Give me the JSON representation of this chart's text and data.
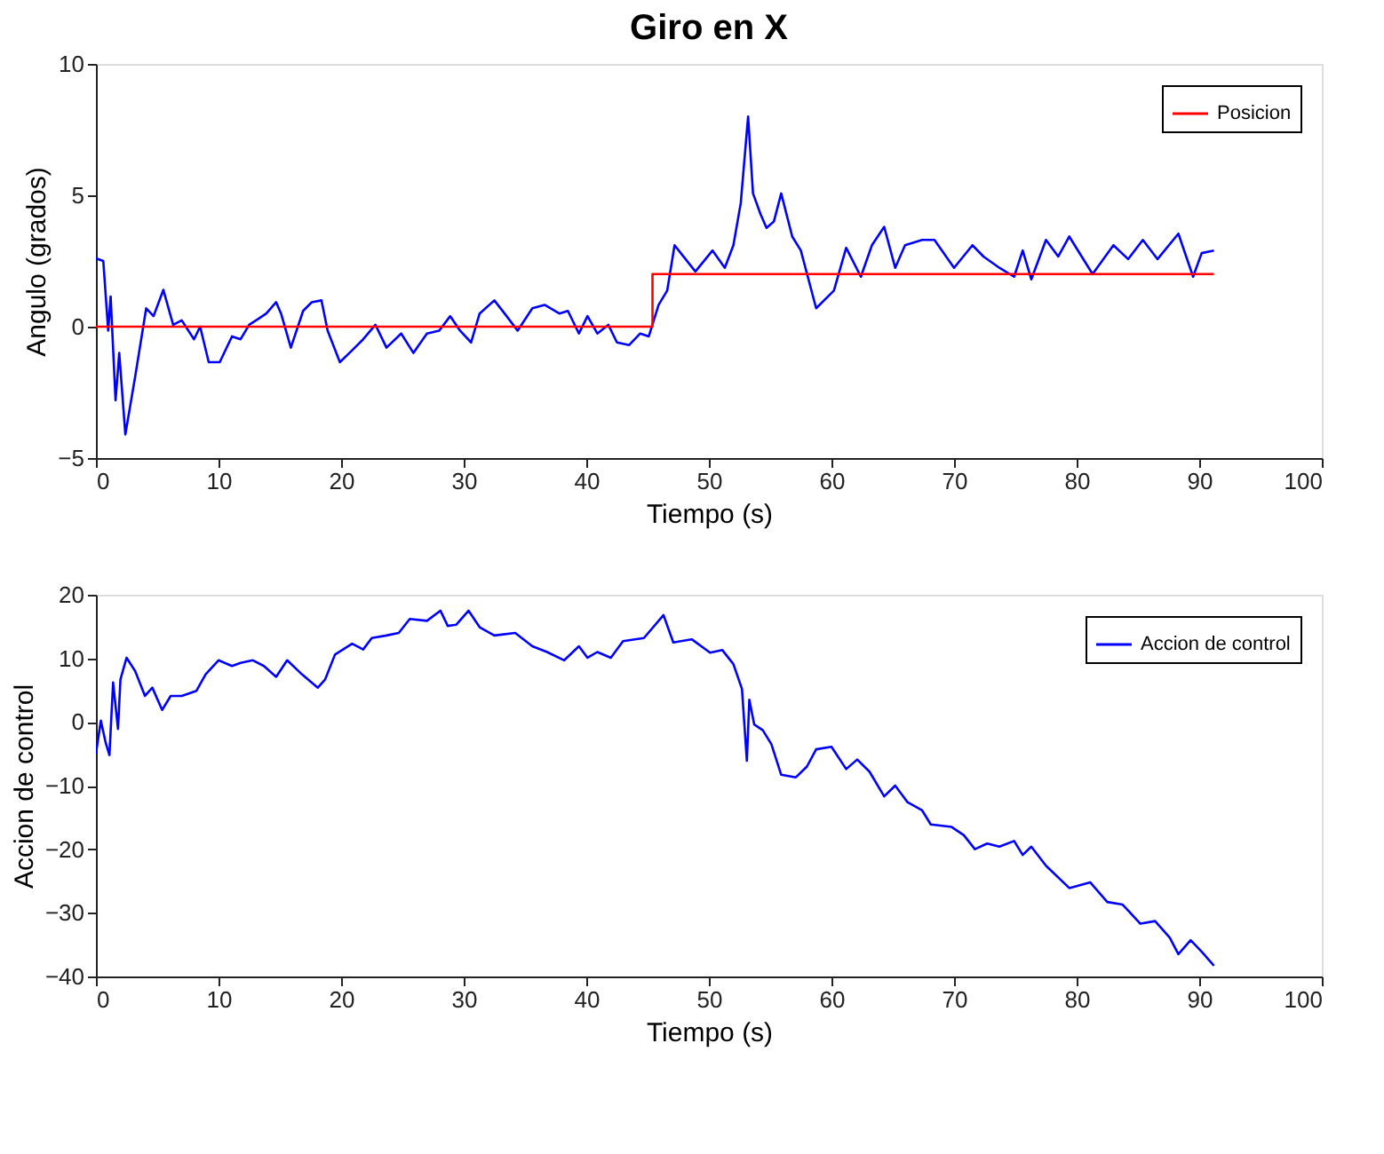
{
  "chart_data": [
    {
      "type": "line",
      "title": "Giro en X",
      "xlabel": "Tiempo (s)",
      "ylabel": "Angulo (grados)",
      "xlim": [
        0,
        100
      ],
      "xticks": [
        0,
        10,
        20,
        30,
        40,
        50,
        60,
        70,
        80,
        90,
        100
      ],
      "ylim": [
        -5,
        10
      ],
      "yticks": [
        -5,
        0,
        5,
        10
      ],
      "grid": false,
      "legend": "top right",
      "series": [
        {
          "color": "#0000ff",
          "x": [
            0,
            0.6,
            1.0,
            1.2,
            1.6,
            1.9,
            2.4,
            3.2,
            4.1,
            4.7,
            5.5,
            6.3,
            7.0,
            8.0,
            8.5,
            9.2,
            10.1,
            11.1,
            11.8,
            12.5,
            13.2,
            13.9,
            14.7,
            15.1,
            15.9,
            16.9,
            17.6,
            18.4,
            18.9,
            19.9,
            20.9,
            21.8,
            22.8,
            23.7,
            24.9,
            25.9,
            27.0,
            28.0,
            28.9,
            29.7,
            30.6,
            31.3,
            32.5,
            33.5,
            34.4,
            35.6,
            36.6,
            37.8,
            38.5,
            39.4,
            40.1,
            40.9,
            41.8,
            42.5,
            43.5,
            44.4,
            45.1,
            45.9,
            46.6,
            47.2,
            48.9,
            50.3,
            51.3,
            52.0,
            52.6,
            53.2,
            53.6,
            54.2,
            54.7,
            55.3,
            55.9,
            56.8,
            57.5,
            58.75,
            60.2,
            61.2,
            62.4,
            63.3,
            64.3,
            65.2,
            66.0,
            67.4,
            68.4,
            70.0,
            71.5,
            72.4,
            73.7,
            74.9,
            75.6,
            76.3,
            77.5,
            78.5,
            79.4,
            81.3,
            83.0,
            84.2,
            85.4,
            86.6,
            88.3,
            89.5,
            90.2,
            91.2
          ],
          "values": [
            2.6,
            2.5,
            -0.15,
            1.15,
            -2.8,
            -1.0,
            -4.1,
            -1.9,
            0.7,
            0.4,
            1.4,
            0.07,
            0.24,
            -0.48,
            0,
            -1.35,
            -1.35,
            -0.37,
            -0.48,
            0.07,
            0.28,
            0.5,
            0.93,
            0.5,
            -0.8,
            0.6,
            0.93,
            1.0,
            -0.15,
            -1.35,
            -0.9,
            -0.48,
            0.07,
            -0.8,
            -0.26,
            -1.0,
            -0.26,
            -0.15,
            0.4,
            -0.15,
            -0.6,
            0.5,
            1.0,
            0.4,
            -0.15,
            0.7,
            0.83,
            0.5,
            0.6,
            -0.26,
            0.4,
            -0.26,
            0.07,
            -0.6,
            -0.7,
            -0.26,
            -0.37,
            0.83,
            1.37,
            3.1,
            2.1,
            2.9,
            2.24,
            3.1,
            4.7,
            8.0,
            5.07,
            4.3,
            3.76,
            4.0,
            5.07,
            3.43,
            2.9,
            0.7,
            1.37,
            3.0,
            1.9,
            3.1,
            3.8,
            2.24,
            3.1,
            3.3,
            3.3,
            2.24,
            3.1,
            2.67,
            2.24,
            1.9,
            2.9,
            1.8,
            3.3,
            2.67,
            3.43,
            2.0,
            3.1,
            2.57,
            3.3,
            2.57,
            3.54,
            1.9,
            2.8,
            2.9
          ]
        },
        {
          "name": "Posicion",
          "type": "step",
          "color": "#ff0000",
          "x": [
            0,
            45.4,
            91.2
          ],
          "values": [
            0,
            2,
            2
          ]
        }
      ]
    },
    {
      "type": "line",
      "xlabel": "Tiempo (s)",
      "ylabel": "Accion de control",
      "xlim": [
        0,
        100
      ],
      "xticks": [
        0,
        10,
        20,
        30,
        40,
        50,
        60,
        70,
        80,
        90,
        100
      ],
      "ylim": [
        -40,
        20
      ],
      "yticks": [
        -40,
        -30,
        -20,
        -10,
        0,
        10,
        20
      ],
      "grid": false,
      "legend": "top right",
      "series": [
        {
          "name": "Accion de control",
          "color": "#0000ff",
          "x": [
            0,
            0.4,
            0.8,
            1.1,
            1.4,
            1.8,
            2.0,
            2.5,
            3.2,
            4.0,
            4.6,
            5.4,
            6.1,
            7.0,
            8.2,
            8.95,
            10.0,
            11.1,
            11.8,
            12.8,
            13.7,
            14.7,
            15.6,
            16.8,
            18.1,
            18.7,
            19.5,
            20.9,
            21.8,
            22.5,
            23.7,
            24.7,
            25.6,
            27.0,
            28.1,
            28.7,
            29.4,
            30.4,
            31.3,
            32.5,
            34.2,
            35.6,
            36.8,
            38.2,
            39.4,
            40.1,
            40.9,
            42.0,
            43.0,
            44.7,
            46.3,
            47.1,
            48.6,
            50.1,
            51.1,
            52.0,
            52.7,
            53.1,
            53.3,
            53.7,
            54.4,
            55.1,
            55.9,
            57.1,
            58.0,
            58.75,
            60.0,
            61.2,
            62.1,
            63.1,
            64.3,
            65.2,
            66.2,
            67.4,
            68.1,
            69.8,
            70.8,
            71.7,
            72.7,
            73.7,
            74.9,
            75.6,
            76.3,
            77.5,
            79.4,
            81.1,
            82.5,
            83.75,
            85.2,
            86.4,
            87.6,
            88.3,
            89.3,
            90.2,
            91.2
          ],
          "values": [
            -5.0,
            0.2,
            -3.3,
            -5.2,
            6.2,
            -1.1,
            6.7,
            10.1,
            8.0,
            4.1,
            5.4,
            1.9,
            4.1,
            4.1,
            4.9,
            7.5,
            9.7,
            8.8,
            9.3,
            9.7,
            8.8,
            7.1,
            9.7,
            7.5,
            5.4,
            6.7,
            10.6,
            12.3,
            11.4,
            13.2,
            13.6,
            14.0,
            16.2,
            15.9,
            17.5,
            15.1,
            15.3,
            17.5,
            14.9,
            13.6,
            14.0,
            11.9,
            11.0,
            9.7,
            11.9,
            10.1,
            11.0,
            10.1,
            12.7,
            13.2,
            16.8,
            12.5,
            13.0,
            10.9,
            11.3,
            9.1,
            5.2,
            -6.1,
            3.5,
            -0.4,
            -1.3,
            -3.5,
            -8.3,
            -8.7,
            -7.0,
            -4.3,
            -3.9,
            -7.4,
            -5.9,
            -7.8,
            -11.7,
            -10.0,
            -12.6,
            -13.9,
            -16.1,
            -16.5,
            -17.8,
            -20.0,
            -19.1,
            -19.6,
            -18.7,
            -20.9,
            -19.6,
            -22.6,
            -26.1,
            -25.2,
            -28.3,
            -28.7,
            -31.7,
            -31.3,
            -33.9,
            -36.5,
            -34.3,
            -36.1,
            -38.3
          ]
        }
      ]
    }
  ]
}
